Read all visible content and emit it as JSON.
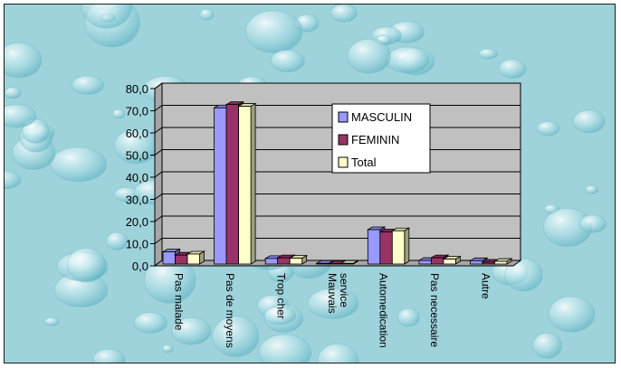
{
  "chart_data": {
    "type": "bar",
    "title": "",
    "xlabel": "",
    "ylabel": "",
    "categories": [
      [
        "Pas malade"
      ],
      [
        "Pas de moyens"
      ],
      [
        "Trop cher"
      ],
      [
        "Mauvais",
        "service"
      ],
      [
        "Automedication"
      ],
      [
        "Pas necessaire"
      ],
      [
        "Autre"
      ]
    ],
    "series": [
      {
        "name": "MASCULIN",
        "values": [
          5.5,
          70.5,
          2.5,
          0.3,
          15.5,
          1.6,
          1.5
        ],
        "color": "#9999ff"
      },
      {
        "name": "FEMININ",
        "values": [
          4.0,
          72.0,
          2.8,
          0.2,
          14.5,
          2.8,
          0.8
        ],
        "color": "#993366"
      },
      {
        "name": "Total",
        "values": [
          4.5,
          71.2,
          2.6,
          0.3,
          15.0,
          2.2,
          1.2
        ],
        "color": "#ffffcc"
      }
    ],
    "ylim": [
      0,
      80
    ],
    "yticks": [
      "0,0",
      "10,0",
      "20,0",
      "30,0",
      "40,0",
      "50,0",
      "60,0",
      "70,0",
      "80,0"
    ],
    "grid": true,
    "legend": "upper-right-inside",
    "wall_color": "#c0c0c0"
  }
}
